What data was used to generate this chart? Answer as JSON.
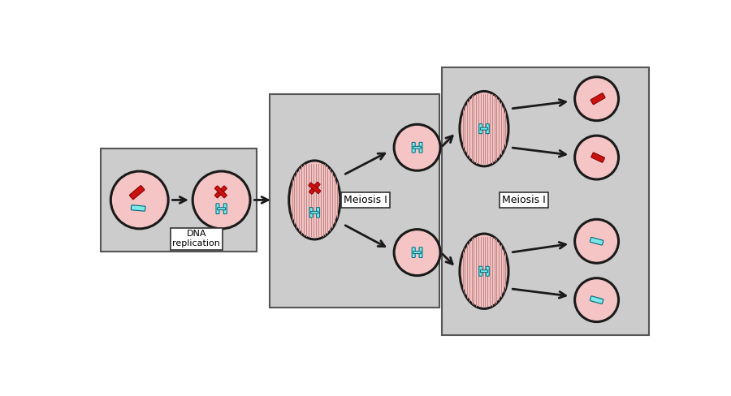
{
  "bg_color": "none",
  "cell_fill": "#f5c5c5",
  "cell_edge": "#1a1a1a",
  "red_chr": "#cc1111",
  "cyan_chr": "#7de8ea",
  "spindle_line": "#c08888",
  "box_fill": "#cccccc",
  "box_edge": "#555555",
  "label_dna": "DNA\nreplication",
  "label_meiosis1a": "Meiosis I",
  "label_meiosis1b": "Meiosis I",
  "arrow_color": "#1a1a1a",
  "lw_cell": 2.2,
  "lw_chr": 5.0
}
